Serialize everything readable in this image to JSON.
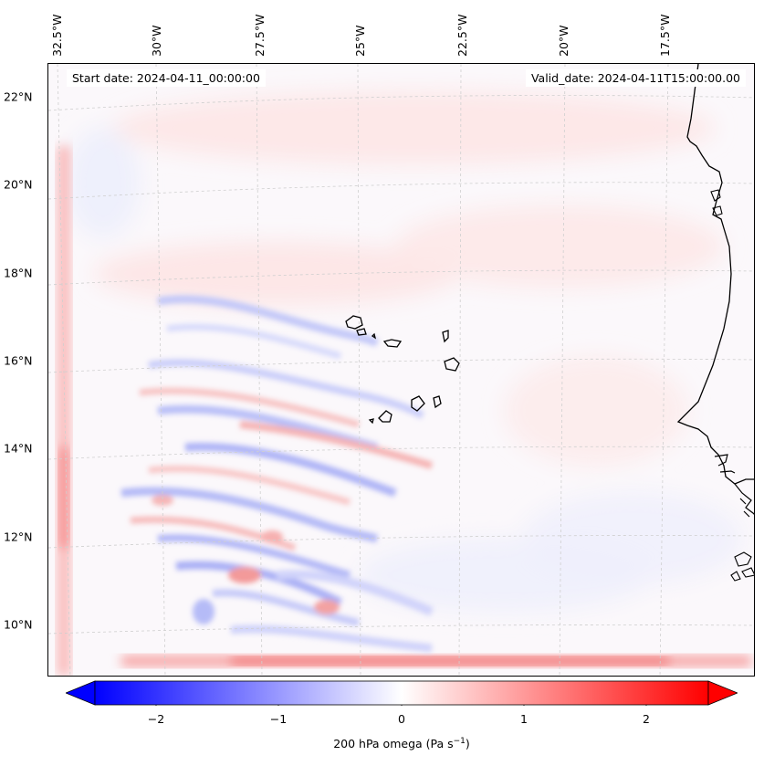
{
  "map": {
    "start_date": "Start date: 2024-04-11_00:00:00",
    "valid_date": "Valid_date: 2024-04-11T15:00:00.00",
    "lat_labels": [
      "22°N",
      "20°N",
      "18°N",
      "16°N",
      "14°N",
      "12°N",
      "10°N"
    ],
    "lon_labels": [
      "32.5°W",
      "30°W",
      "27.5°W",
      "25°W",
      "22.5°W",
      "20°W",
      "17.5°W"
    ],
    "features": [
      "coastline-west-africa",
      "cape-verde-islands"
    ],
    "gridlines": true
  },
  "colorbar": {
    "label_prefix": "200 hPa omega (Pa s",
    "label_exponent": "−1",
    "label_suffix": ")",
    "ticks": [
      "−2",
      "−1",
      "0",
      "1",
      "2"
    ],
    "range": [
      -2.7,
      2.7
    ],
    "colormap": "bwr",
    "extend": "both",
    "colors": {
      "low": "#0000ff",
      "mid": "#ffffff",
      "high": "#ff0000"
    }
  }
}
